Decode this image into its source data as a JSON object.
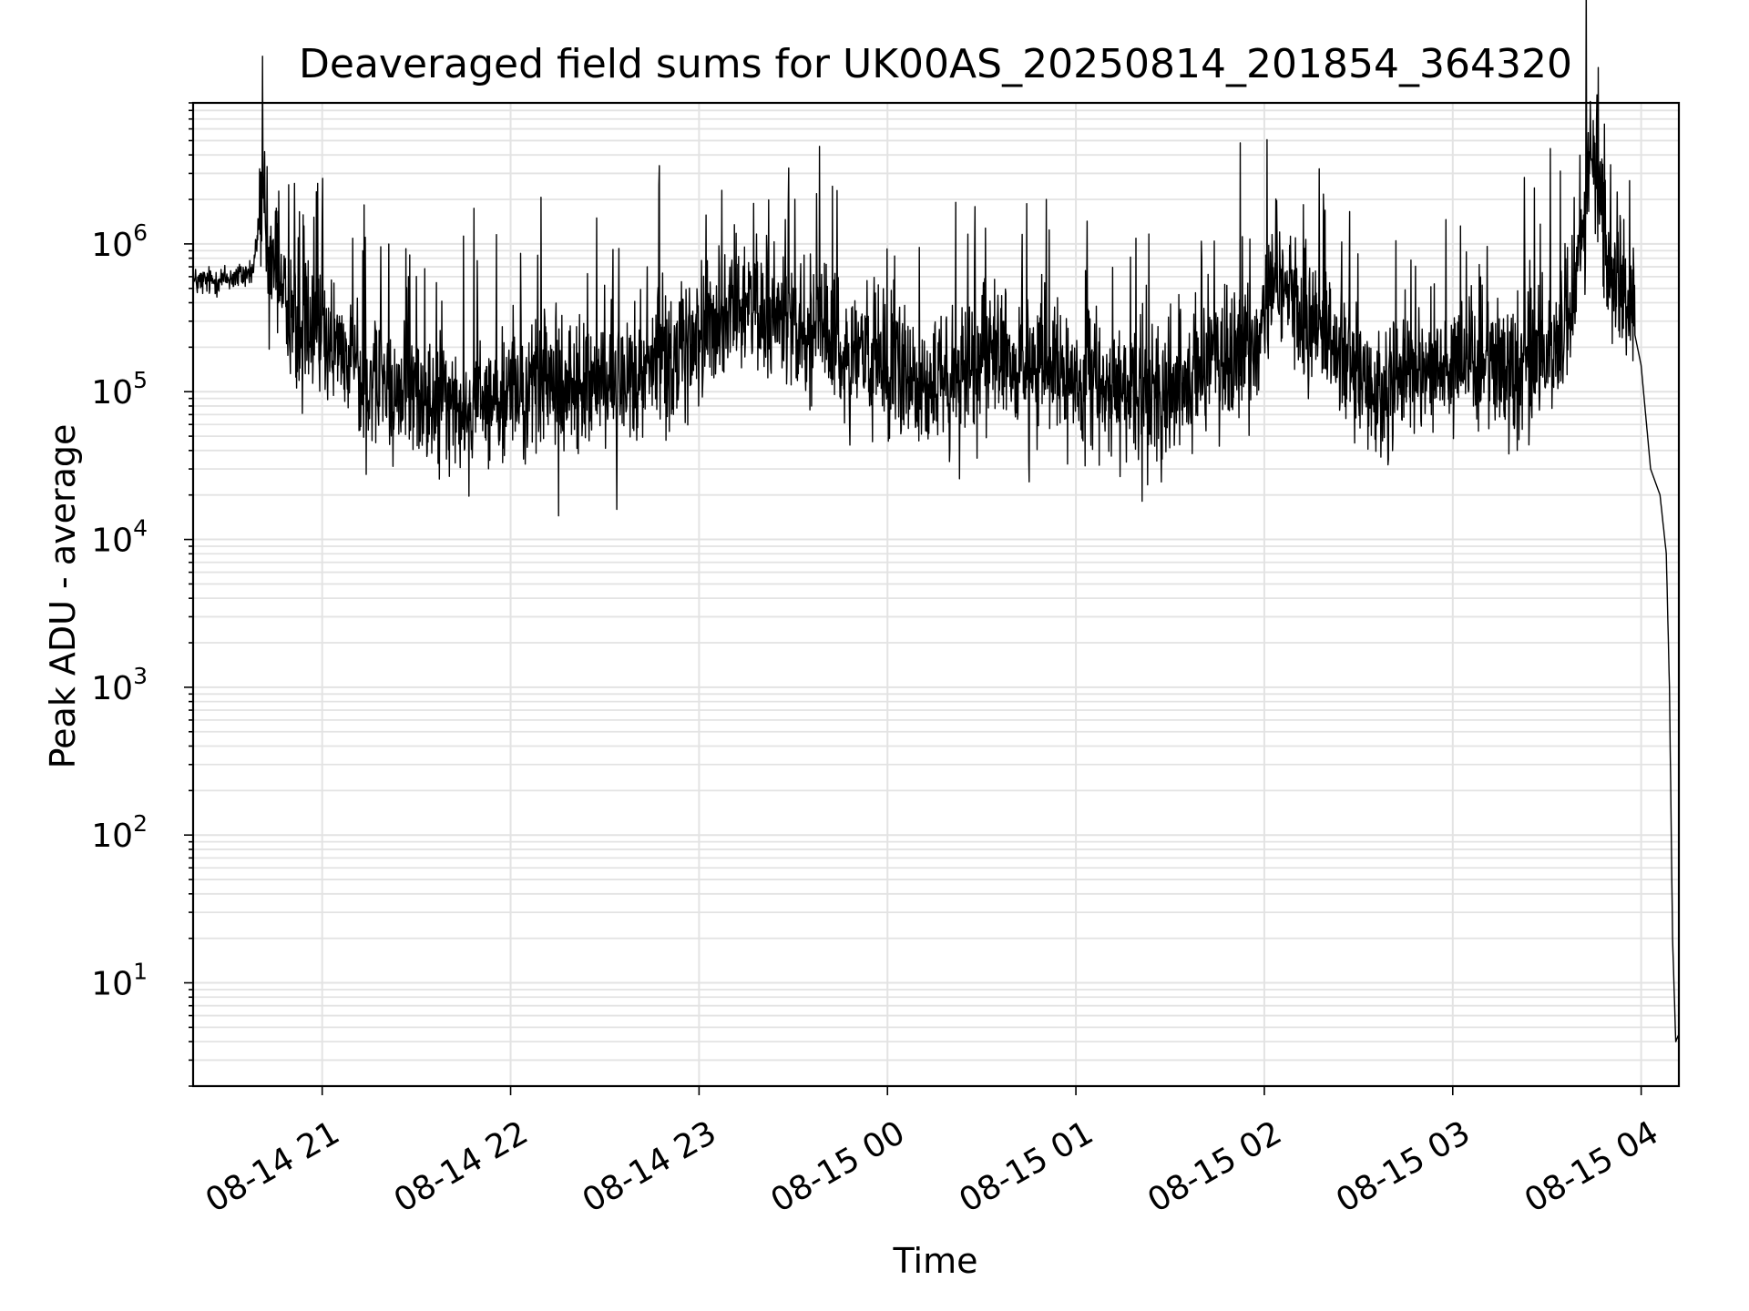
{
  "chart_data": {
    "type": "line",
    "title": "Deaveraged field sums for UK00AS_20250814_201854_364320",
    "xlabel": "Time",
    "ylabel": "Peak ADU - average",
    "yscale": "log",
    "ylim": [
      2,
      9000000
    ],
    "xlim": [
      "2025-08-14 20:18:54",
      "2025-08-15 04:12:00"
    ],
    "grid": true,
    "x_ticks": [
      {
        "t": "2025-08-14 21:00",
        "label": "08-14 21"
      },
      {
        "t": "2025-08-14 22:00",
        "label": "08-14 22"
      },
      {
        "t": "2025-08-14 23:00",
        "label": "08-14 23"
      },
      {
        "t": "2025-08-15 00:00",
        "label": "08-15 00"
      },
      {
        "t": "2025-08-15 01:00",
        "label": "08-15 01"
      },
      {
        "t": "2025-08-15 02:00",
        "label": "08-15 02"
      },
      {
        "t": "2025-08-15 03:00",
        "label": "08-15 03"
      },
      {
        "t": "2025-08-15 04:00",
        "label": "08-15 04"
      }
    ],
    "y_ticks": [
      {
        "value": 10,
        "base": "10",
        "exp": "1"
      },
      {
        "value": 100,
        "base": "10",
        "exp": "2"
      },
      {
        "value": 1000,
        "base": "10",
        "exp": "3"
      },
      {
        "value": 10000,
        "base": "10",
        "exp": "4"
      },
      {
        "value": 100000,
        "base": "10",
        "exp": "5"
      },
      {
        "value": 1000000,
        "base": "10",
        "exp": "6"
      }
    ],
    "series": [
      {
        "color": "#000000",
        "x": [
          "2025-08-14 20:18:54",
          "2025-08-14 20:25",
          "2025-08-14 20:33",
          "2025-08-14 20:38",
          "2025-08-14 20:41",
          "2025-08-14 20:43",
          "2025-08-14 20:45",
          "2025-08-14 20:48",
          "2025-08-14 20:50",
          "2025-08-14 20:55",
          "2025-08-14 21:00",
          "2025-08-14 21:08",
          "2025-08-14 21:18",
          "2025-08-14 21:30",
          "2025-08-14 21:45",
          "2025-08-14 22:00",
          "2025-08-14 22:15",
          "2025-08-14 22:35",
          "2025-08-14 22:50",
          "2025-08-14 23:00",
          "2025-08-14 23:05",
          "2025-08-14 23:15",
          "2025-08-14 23:30",
          "2025-08-14 23:45",
          "2025-08-15 00:00",
          "2025-08-15 00:20",
          "2025-08-15 00:30",
          "2025-08-15 00:45",
          "2025-08-15 01:00",
          "2025-08-15 01:15",
          "2025-08-15 01:30",
          "2025-08-15 01:45",
          "2025-08-15 01:55",
          "2025-08-15 02:05",
          "2025-08-15 02:20",
          "2025-08-15 02:35",
          "2025-08-15 02:50",
          "2025-08-15 03:05",
          "2025-08-15 03:20",
          "2025-08-15 03:30",
          "2025-08-15 03:38",
          "2025-08-15 03:45",
          "2025-08-15 03:50",
          "2025-08-15 03:55",
          "2025-08-15 04:00",
          "2025-08-15 04:03",
          "2025-08-15 04:06",
          "2025-08-15 04:08",
          "2025-08-15 04:09",
          "2025-08-15 04:10",
          "2025-08-15 04:11",
          "2025-08-15 04:12"
        ],
        "y": [
          550000,
          560000,
          600000,
          650000,
          2200000,
          700000,
          800000,
          500000,
          300000,
          280000,
          250000,
          170000,
          110000,
          90000,
          80000,
          90000,
          110000,
          110000,
          170000,
          230000,
          300000,
          380000,
          320000,
          200000,
          140000,
          110000,
          220000,
          140000,
          120000,
          100000,
          110000,
          140000,
          200000,
          600000,
          180000,
          90000,
          150000,
          170000,
          150000,
          180000,
          300000,
          4700000,
          700000,
          500000,
          150000,
          30000,
          20000,
          8000,
          1000,
          20,
          4,
          4.5
        ]
      }
    ]
  }
}
